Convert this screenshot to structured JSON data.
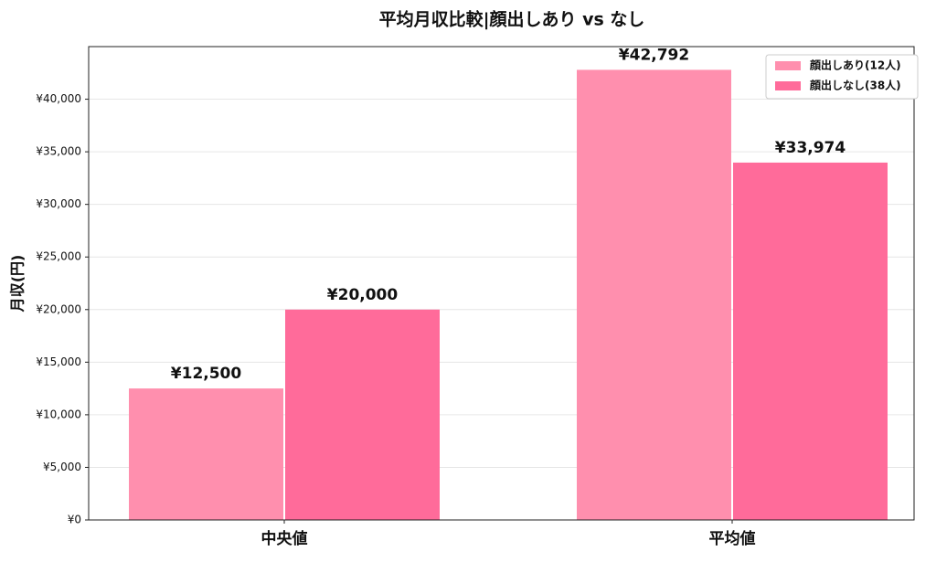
{
  "chart_data": {
    "type": "bar",
    "title": "平均月収比較|顔出しあり vs なし",
    "y_label": "月収(円)",
    "categories": [
      "中央値",
      "平均値"
    ],
    "series": [
      {
        "name": "顔出しあり(12人)",
        "color": "#ff8fae",
        "values": [
          12500,
          42792
        ],
        "value_labels": [
          "¥12,500",
          "¥42,792"
        ]
      },
      {
        "name": "顔出しなし(38人)",
        "color": "#ff6b9a",
        "values": [
          20000,
          33974
        ],
        "value_labels": [
          "¥20,000",
          "¥33,974"
        ]
      }
    ],
    "ylim": [
      0,
      45000
    ],
    "yticks": [
      {
        "value": 0,
        "label": "¥0"
      },
      {
        "value": 5000,
        "label": "¥5,000"
      },
      {
        "value": 10000,
        "label": "¥10,000"
      },
      {
        "value": 15000,
        "label": "¥15,000"
      },
      {
        "value": 20000,
        "label": "¥20,000"
      },
      {
        "value": 25000,
        "label": "¥25,000"
      },
      {
        "value": 30000,
        "label": "¥30,000"
      },
      {
        "value": 35000,
        "label": "¥35,000"
      },
      {
        "value": 40000,
        "label": "¥40,000"
      }
    ],
    "grid": true,
    "legend": "upper right"
  }
}
